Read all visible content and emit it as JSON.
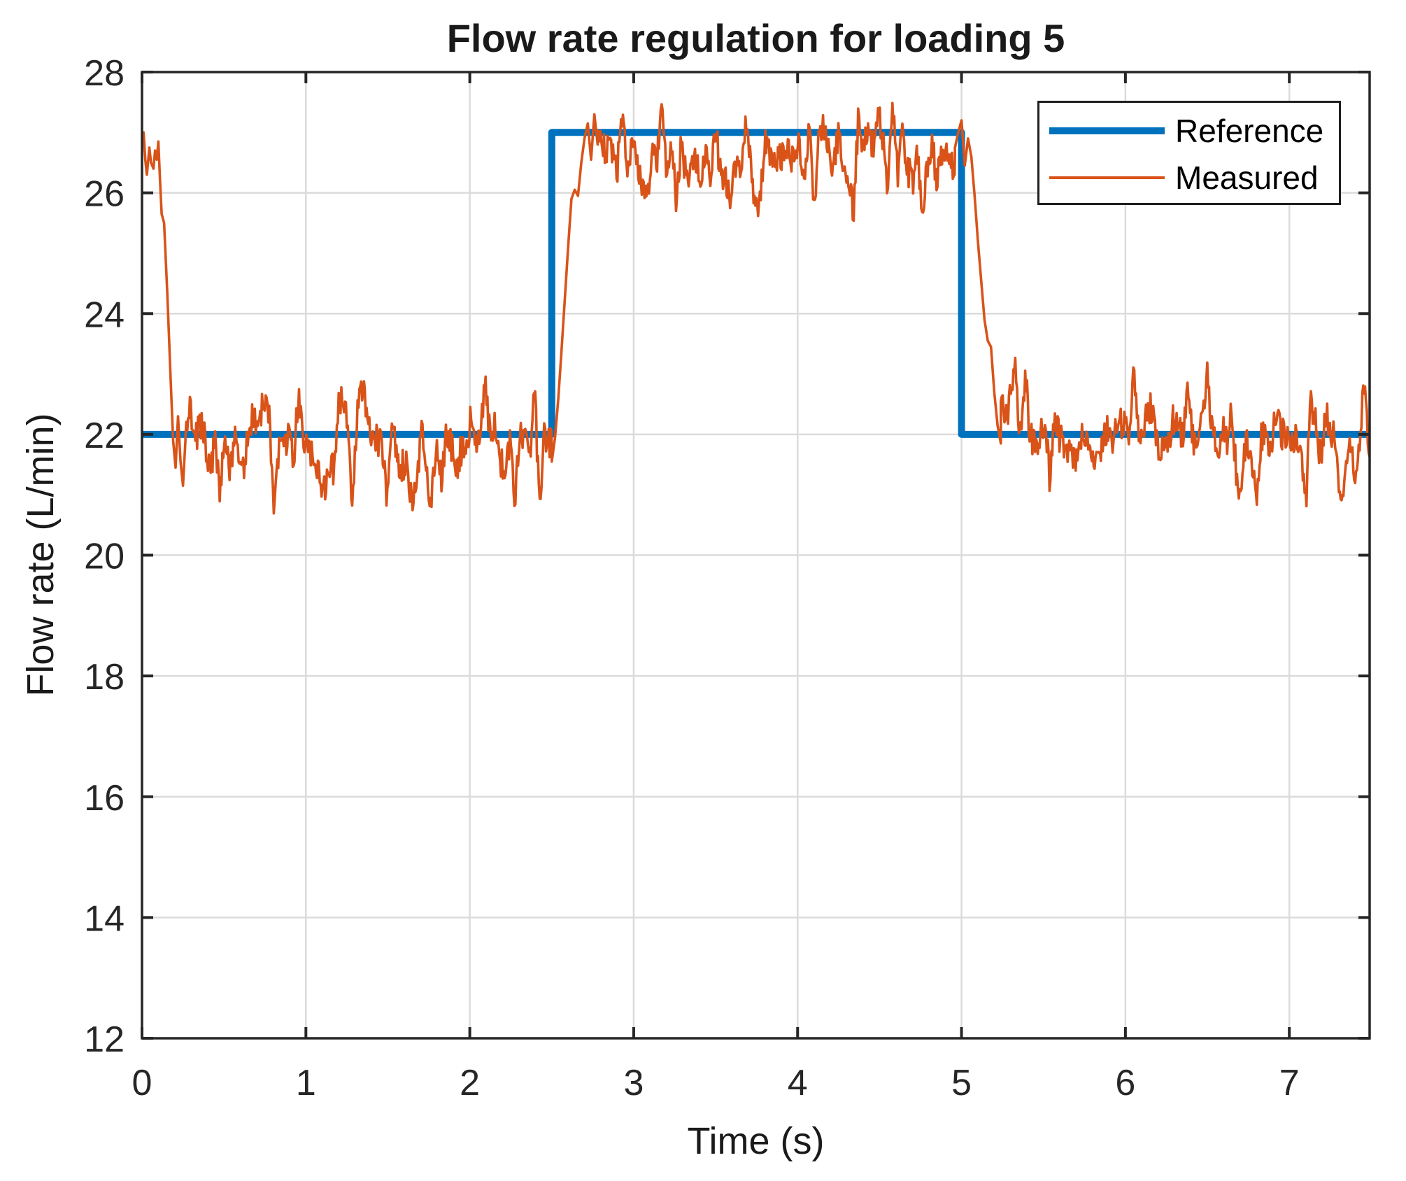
{
  "chart_data": {
    "type": "line",
    "title": "Flow rate regulation for loading 5",
    "xlabel": "Time (s)",
    "ylabel": "Flow rate (L/min)",
    "xlim": [
      0,
      7.49
    ],
    "ylim": [
      12,
      28
    ],
    "xticks": [
      0,
      1,
      2,
      3,
      4,
      5,
      6,
      7
    ],
    "yticks": [
      12,
      14,
      16,
      18,
      20,
      22,
      24,
      26,
      28
    ],
    "grid": true,
    "legend_position": "top-right",
    "colors": {
      "reference": "#0072BD",
      "measured": "#D95319",
      "grid": "#DBDBDB",
      "axis": "#262626",
      "background": "#FFFFFF"
    },
    "series": [
      {
        "name": "Reference",
        "color": "#0072BD",
        "line_width": 10,
        "points": [
          [
            0,
            22
          ],
          [
            2.5,
            22
          ],
          [
            2.5,
            27
          ],
          [
            5,
            27
          ],
          [
            5,
            22
          ],
          [
            7.49,
            22
          ]
        ]
      },
      {
        "name": "Measured",
        "color": "#D95319",
        "line_width": 3.6,
        "summary": "Noisy measured flow rate: starts near 26.8 L/min, drops to the 22 L/min band by t=0.25 s, tracks 22 with roughly +/-0.7 noise (peaks ~23.3, dips ~21.0) until the step at 2.5 s, rises within ~0.15 s to a ~26.6 L/min band (peaks ~27.5, dips ~25.9) until 5.0 s, then falls within ~0.2 s back to the ~21.9 L/min band (peaks ~23.4, dips ~21.0) through 7.49 s.",
        "segments": [
          {
            "type": "points",
            "points": [
              [
                0,
                26.8
              ],
              [
                0.01,
                27.0
              ],
              [
                0.02,
                26.55
              ],
              [
                0.03,
                26.3
              ],
              [
                0.045,
                26.75
              ],
              [
                0.055,
                26.5
              ],
              [
                0.07,
                26.4
              ],
              [
                0.08,
                26.7
              ],
              [
                0.09,
                26.55
              ],
              [
                0.1,
                26.85
              ],
              [
                0.11,
                26.2
              ],
              [
                0.12,
                25.65
              ],
              [
                0.135,
                25.5
              ],
              [
                0.155,
                24.3
              ],
              [
                0.175,
                22.9
              ],
              [
                0.19,
                21.9
              ],
              [
                0.205,
                21.45
              ],
              [
                0.22,
                22.3
              ],
              [
                0.235,
                21.55
              ],
              [
                0.25,
                21.15
              ],
              [
                0.265,
                21.9
              ]
            ]
          },
          {
            "type": "noise",
            "t0": 0.265,
            "t1": 2.5,
            "base": 21.88,
            "amp": 1.0,
            "jitter": 0.28,
            "seed": 20107
          },
          {
            "type": "points",
            "points": [
              [
                2.5,
                21.55
              ],
              [
                2.52,
                21.95
              ],
              [
                2.54,
                22.6
              ],
              [
                2.56,
                23.4
              ],
              [
                2.58,
                24.25
              ],
              [
                2.6,
                25.1
              ],
              [
                2.62,
                25.9
              ],
              [
                2.64,
                26.05
              ],
              [
                2.66,
                25.95
              ],
              [
                2.68,
                26.5
              ],
              [
                2.7,
                26.9
              ],
              [
                2.72,
                27.15
              ],
              [
                2.74,
                26.55
              ],
              [
                2.76,
                27.3
              ],
              [
                2.78,
                26.8
              ]
            ]
          },
          {
            "type": "noise",
            "t0": 2.78,
            "t1": 4.96,
            "base": 26.62,
            "amp": 0.85,
            "jitter": 0.26,
            "seed": 77003
          },
          {
            "type": "points",
            "points": [
              [
                4.96,
                26.75
              ],
              [
                4.98,
                27.0
              ],
              [
                5.0,
                27.2
              ],
              [
                5.02,
                26.45
              ],
              [
                5.04,
                26.9
              ],
              [
                5.06,
                26.6
              ],
              [
                5.08,
                25.95
              ],
              [
                5.1,
                25.2
              ],
              [
                5.12,
                24.55
              ],
              [
                5.14,
                23.9
              ],
              [
                5.16,
                23.55
              ],
              [
                5.18,
                23.45
              ],
              [
                5.2,
                22.7
              ],
              [
                5.22,
                22.15
              ],
              [
                5.24,
                21.85
              ]
            ]
          },
          {
            "type": "noise",
            "t0": 5.24,
            "t1": 7.49,
            "base": 21.92,
            "amp": 1.0,
            "jitter": 0.28,
            "seed": 41389
          }
        ]
      }
    ]
  }
}
